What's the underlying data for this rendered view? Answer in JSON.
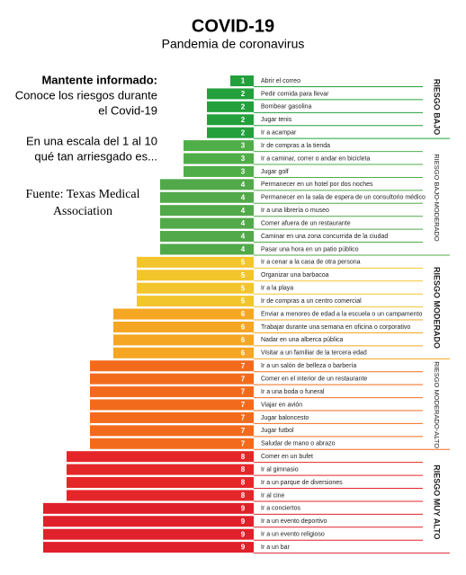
{
  "chart_data": {
    "type": "bar",
    "orientation": "horizontal",
    "title": "COVID-19",
    "subtitle": "Pandemia de coronavirus",
    "annotations": [
      "Mantente informado:",
      "Conoce los riesgos durante",
      "el Covid-19",
      "En una escala del 1 al 10",
      "qué tan arriesgado es...",
      "Fuente: Texas Medical",
      "Association"
    ],
    "xlim": [
      0,
      10
    ],
    "series": [
      {
        "name": "RIESGO BAJO",
        "label_style": "bold",
        "categories": [
          "Abrir el correo",
          "Pedir comida para llevar",
          "Bombear gasolina",
          "Jugar tenis",
          "Ir a acampar"
        ],
        "values": [
          1,
          2,
          2,
          2,
          2
        ],
        "colors": [
          "#23a03c",
          "#23a03c",
          "#23a03c",
          "#23a03c",
          "#23a03c"
        ]
      },
      {
        "name": "RIESGO BAJO-MODERADO",
        "label_style": "normal",
        "categories": [
          "Ir de compras a la tienda",
          "Ir a caminar, correr o andar en bicicleta",
          "Jugar golf",
          "Permanecer en un hotel por dos noches",
          "Permanecer en la sala de espera de un consultorio médico",
          "Ir a una librería o museo",
          "Comer afuera de un restaurante",
          "Caminar en una zona concurrida de la ciudad",
          "Pasar una hora en un patio público"
        ],
        "values": [
          3,
          3,
          3,
          4,
          4,
          4,
          4,
          4,
          4
        ],
        "colors": [
          "#4fae48",
          "#4fae48",
          "#4fae48",
          "#52a94a",
          "#52a94a",
          "#52a94a",
          "#52a94a",
          "#52a94a",
          "#52a94a"
        ]
      },
      {
        "name": "RIESGO MODERADO",
        "label_style": "bold",
        "categories": [
          "Ir a cenar a la casa de otra persona",
          "Organizar una barbacoa",
          "Ir a la playa",
          "Ir de compras a un centro comercial",
          "Enviar a menores de edad a la escuela o un campamento",
          "Trabajar durante una semana en oficina o corporativo",
          "Nadar en una alberca pública",
          "Visitar a un familiar de la tercera edad"
        ],
        "values": [
          5,
          5,
          5,
          5,
          6,
          6,
          6,
          6
        ],
        "colors": [
          "#f3c52c",
          "#f3c52c",
          "#f3c52c",
          "#f3c52c",
          "#f5a623",
          "#f5a623",
          "#f5a623",
          "#f5a623"
        ]
      },
      {
        "name": "RIESGO MODERADO-ALTO",
        "label_style": "normal",
        "categories": [
          "Ir a un salón de belleza o barbería",
          "Comer en el interior de un restaurante",
          "Ir a una boda o funeral",
          "Viajar en avión",
          "Jugar baloncesto",
          "Jugar futbol",
          "Saludar de mano o abrazo"
        ],
        "values": [
          7,
          7,
          7,
          7,
          7,
          7,
          7
        ],
        "colors": [
          "#f26b1d",
          "#f26b1d",
          "#f26b1d",
          "#f26b1d",
          "#f26b1d",
          "#f26b1d",
          "#f26b1d"
        ]
      },
      {
        "name": "RIESGO MUY ALTO",
        "label_style": "bold",
        "categories": [
          "Comer en un bufet",
          "Ir al gimnasio",
          "Ir a un parque de diversiones",
          "Ir al cine",
          "Ir a conciertos",
          "Ir a un evento deportivo",
          "Ir a un evento religioso",
          "Ir a un bar"
        ],
        "values": [
          8,
          8,
          8,
          8,
          9,
          9,
          9,
          9
        ],
        "colors": [
          "#e52629",
          "#e52629",
          "#e52629",
          "#e52629",
          "#e0202a",
          "#e0202a",
          "#e0202a",
          "#e0202a"
        ]
      }
    ]
  }
}
